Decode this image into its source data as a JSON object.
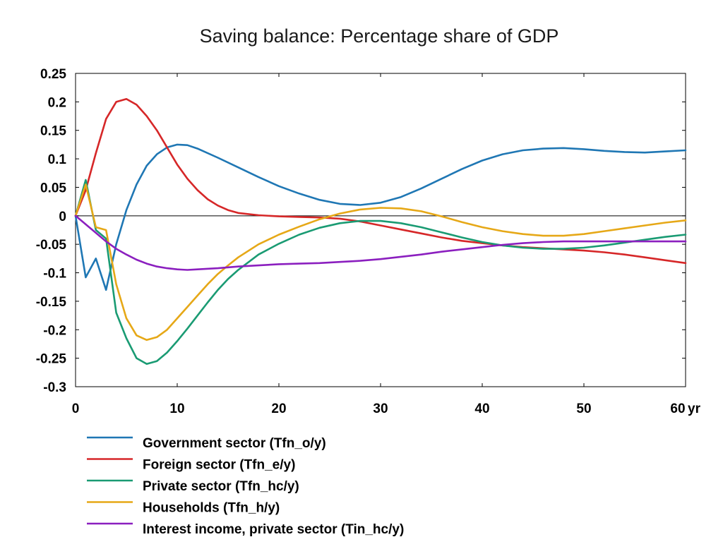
{
  "chart_data": {
    "type": "line",
    "title": "Saving balance: Percentage share of GDP",
    "xlabel": "",
    "ylabel": "",
    "x_unit_label": "yr",
    "xlim": [
      0,
      60
    ],
    "ylim": [
      -0.3,
      0.25
    ],
    "x_ticks": [
      0,
      10,
      20,
      30,
      40,
      50,
      60
    ],
    "x_tick_labels": [
      "0",
      "10",
      "20",
      "30",
      "40",
      "50",
      "60"
    ],
    "y_ticks": [
      0.25,
      0.2,
      0.15,
      0.1,
      0.05,
      0,
      -0.05,
      -0.1,
      -0.15,
      -0.2,
      -0.25,
      -0.3
    ],
    "y_tick_labels": [
      "0.25",
      "0.2",
      "0.15",
      "0.1",
      "0.05",
      "0",
      "-0.05",
      "-0.1",
      "-0.15",
      "-0.2",
      "-0.25",
      "-0.3"
    ],
    "grid": false,
    "zero_line": true,
    "legend_position": "bottom-left",
    "series": [
      {
        "name": "Government sector (Tfn_o/y)",
        "color": "#1f77b4",
        "points": [
          [
            0,
            0
          ],
          [
            1,
            -0.108
          ],
          [
            2,
            -0.075
          ],
          [
            3,
            -0.13
          ],
          [
            4,
            -0.05
          ],
          [
            5,
            0.01
          ],
          [
            6,
            0.055
          ],
          [
            7,
            0.088
          ],
          [
            8,
            0.108
          ],
          [
            9,
            0.12
          ],
          [
            10,
            0.125
          ],
          [
            11,
            0.124
          ],
          [
            12,
            0.118
          ],
          [
            14,
            0.102
          ],
          [
            16,
            0.085
          ],
          [
            18,
            0.068
          ],
          [
            20,
            0.052
          ],
          [
            22,
            0.039
          ],
          [
            24,
            0.028
          ],
          [
            26,
            0.021
          ],
          [
            28,
            0.019
          ],
          [
            30,
            0.023
          ],
          [
            32,
            0.033
          ],
          [
            34,
            0.048
          ],
          [
            36,
            0.065
          ],
          [
            38,
            0.082
          ],
          [
            40,
            0.097
          ],
          [
            42,
            0.108
          ],
          [
            44,
            0.115
          ],
          [
            46,
            0.118
          ],
          [
            48,
            0.119
          ],
          [
            50,
            0.117
          ],
          [
            52,
            0.114
          ],
          [
            54,
            0.112
          ],
          [
            56,
            0.111
          ],
          [
            58,
            0.113
          ],
          [
            60,
            0.115
          ]
        ]
      },
      {
        "name": "Foreign sector (Tfn_e/y)",
        "color": "#d62728",
        "points": [
          [
            0,
            0
          ],
          [
            1,
            0.045
          ],
          [
            2,
            0.11
          ],
          [
            3,
            0.17
          ],
          [
            4,
            0.2
          ],
          [
            5,
            0.205
          ],
          [
            6,
            0.195
          ],
          [
            7,
            0.175
          ],
          [
            8,
            0.15
          ],
          [
            9,
            0.12
          ],
          [
            10,
            0.09
          ],
          [
            11,
            0.065
          ],
          [
            12,
            0.045
          ],
          [
            13,
            0.029
          ],
          [
            14,
            0.018
          ],
          [
            15,
            0.01
          ],
          [
            16,
            0.005
          ],
          [
            18,
            0.001
          ],
          [
            20,
            -0.001
          ],
          [
            22,
            -0.002
          ],
          [
            24,
            -0.003
          ],
          [
            26,
            -0.005
          ],
          [
            28,
            -0.01
          ],
          [
            30,
            -0.017
          ],
          [
            32,
            -0.024
          ],
          [
            34,
            -0.031
          ],
          [
            36,
            -0.038
          ],
          [
            38,
            -0.044
          ],
          [
            40,
            -0.048
          ],
          [
            42,
            -0.052
          ],
          [
            44,
            -0.055
          ],
          [
            46,
            -0.057
          ],
          [
            48,
            -0.059
          ],
          [
            50,
            -0.061
          ],
          [
            52,
            -0.064
          ],
          [
            54,
            -0.068
          ],
          [
            56,
            -0.073
          ],
          [
            58,
            -0.078
          ],
          [
            60,
            -0.083
          ]
        ]
      },
      {
        "name": "Private sector (Tfn_hc/y)",
        "color": "#1a9b73",
        "points": [
          [
            0,
            0
          ],
          [
            1,
            0.063
          ],
          [
            2,
            -0.025
          ],
          [
            3,
            -0.04
          ],
          [
            4,
            -0.17
          ],
          [
            5,
            -0.215
          ],
          [
            6,
            -0.25
          ],
          [
            7,
            -0.26
          ],
          [
            8,
            -0.255
          ],
          [
            9,
            -0.24
          ],
          [
            10,
            -0.22
          ],
          [
            11,
            -0.198
          ],
          [
            12,
            -0.175
          ],
          [
            13,
            -0.152
          ],
          [
            14,
            -0.13
          ],
          [
            15,
            -0.111
          ],
          [
            16,
            -0.095
          ],
          [
            18,
            -0.068
          ],
          [
            20,
            -0.049
          ],
          [
            22,
            -0.033
          ],
          [
            24,
            -0.021
          ],
          [
            26,
            -0.013
          ],
          [
            28,
            -0.009
          ],
          [
            30,
            -0.009
          ],
          [
            32,
            -0.013
          ],
          [
            34,
            -0.02
          ],
          [
            36,
            -0.029
          ],
          [
            38,
            -0.038
          ],
          [
            40,
            -0.046
          ],
          [
            42,
            -0.052
          ],
          [
            44,
            -0.056
          ],
          [
            46,
            -0.058
          ],
          [
            48,
            -0.058
          ],
          [
            50,
            -0.056
          ],
          [
            52,
            -0.052
          ],
          [
            54,
            -0.047
          ],
          [
            56,
            -0.042
          ],
          [
            58,
            -0.037
          ],
          [
            60,
            -0.033
          ]
        ]
      },
      {
        "name": "Households (Tfn_h/y)",
        "color": "#e6a817",
        "points": [
          [
            0,
            0
          ],
          [
            1,
            0.055
          ],
          [
            2,
            -0.02
          ],
          [
            3,
            -0.025
          ],
          [
            4,
            -0.12
          ],
          [
            5,
            -0.18
          ],
          [
            6,
            -0.21
          ],
          [
            7,
            -0.218
          ],
          [
            8,
            -0.213
          ],
          [
            9,
            -0.2
          ],
          [
            10,
            -0.18
          ],
          [
            11,
            -0.16
          ],
          [
            12,
            -0.14
          ],
          [
            13,
            -0.12
          ],
          [
            14,
            -0.102
          ],
          [
            15,
            -0.087
          ],
          [
            16,
            -0.073
          ],
          [
            18,
            -0.05
          ],
          [
            20,
            -0.033
          ],
          [
            22,
            -0.019
          ],
          [
            24,
            -0.006
          ],
          [
            26,
            0.004
          ],
          [
            28,
            0.011
          ],
          [
            30,
            0.014
          ],
          [
            32,
            0.013
          ],
          [
            34,
            0.008
          ],
          [
            36,
            -0.001
          ],
          [
            38,
            -0.011
          ],
          [
            40,
            -0.02
          ],
          [
            42,
            -0.027
          ],
          [
            44,
            -0.032
          ],
          [
            46,
            -0.035
          ],
          [
            48,
            -0.035
          ],
          [
            50,
            -0.032
          ],
          [
            52,
            -0.027
          ],
          [
            54,
            -0.022
          ],
          [
            56,
            -0.017
          ],
          [
            58,
            -0.012
          ],
          [
            60,
            -0.008
          ]
        ]
      },
      {
        "name": "Interest income, private sector (Tin_hc/y)",
        "color": "#8b1fbf",
        "points": [
          [
            0,
            0
          ],
          [
            1,
            -0.015
          ],
          [
            2,
            -0.03
          ],
          [
            3,
            -0.045
          ],
          [
            4,
            -0.058
          ],
          [
            5,
            -0.068
          ],
          [
            6,
            -0.077
          ],
          [
            7,
            -0.084
          ],
          [
            8,
            -0.089
          ],
          [
            9,
            -0.092
          ],
          [
            10,
            -0.094
          ],
          [
            11,
            -0.095
          ],
          [
            12,
            -0.094
          ],
          [
            14,
            -0.092
          ],
          [
            16,
            -0.089
          ],
          [
            18,
            -0.087
          ],
          [
            20,
            -0.085
          ],
          [
            22,
            -0.084
          ],
          [
            24,
            -0.083
          ],
          [
            26,
            -0.081
          ],
          [
            28,
            -0.079
          ],
          [
            30,
            -0.076
          ],
          [
            32,
            -0.072
          ],
          [
            34,
            -0.068
          ],
          [
            36,
            -0.063
          ],
          [
            38,
            -0.059
          ],
          [
            40,
            -0.055
          ],
          [
            42,
            -0.051
          ],
          [
            44,
            -0.048
          ],
          [
            46,
            -0.046
          ],
          [
            48,
            -0.045
          ],
          [
            50,
            -0.045
          ],
          [
            52,
            -0.045
          ],
          [
            54,
            -0.045
          ],
          [
            56,
            -0.045
          ],
          [
            58,
            -0.045
          ],
          [
            60,
            -0.045
          ]
        ]
      }
    ]
  }
}
